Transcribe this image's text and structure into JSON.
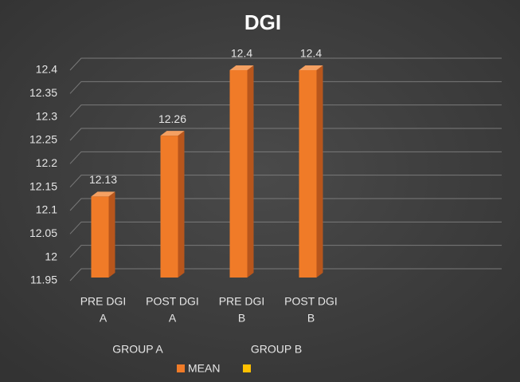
{
  "chart_data": {
    "type": "bar3d",
    "title": "DGI",
    "categories": [
      [
        "PRE DGI",
        "A"
      ],
      [
        "POST DGI",
        "A"
      ],
      [
        "PRE DGI",
        "B"
      ],
      [
        "POST DGI",
        "B"
      ]
    ],
    "groups": [
      "GROUP A",
      "GROUP B"
    ],
    "series": [
      {
        "name": "MEAN",
        "color": "#f07b28",
        "values": [
          12.13,
          12.26,
          12.4,
          12.4
        ]
      }
    ],
    "ylim": [
      11.95,
      12.4
    ],
    "yticks": [
      11.95,
      12,
      12.05,
      12.1,
      12.15,
      12.2,
      12.25,
      12.3,
      12.35,
      12.4
    ],
    "grid": true
  }
}
